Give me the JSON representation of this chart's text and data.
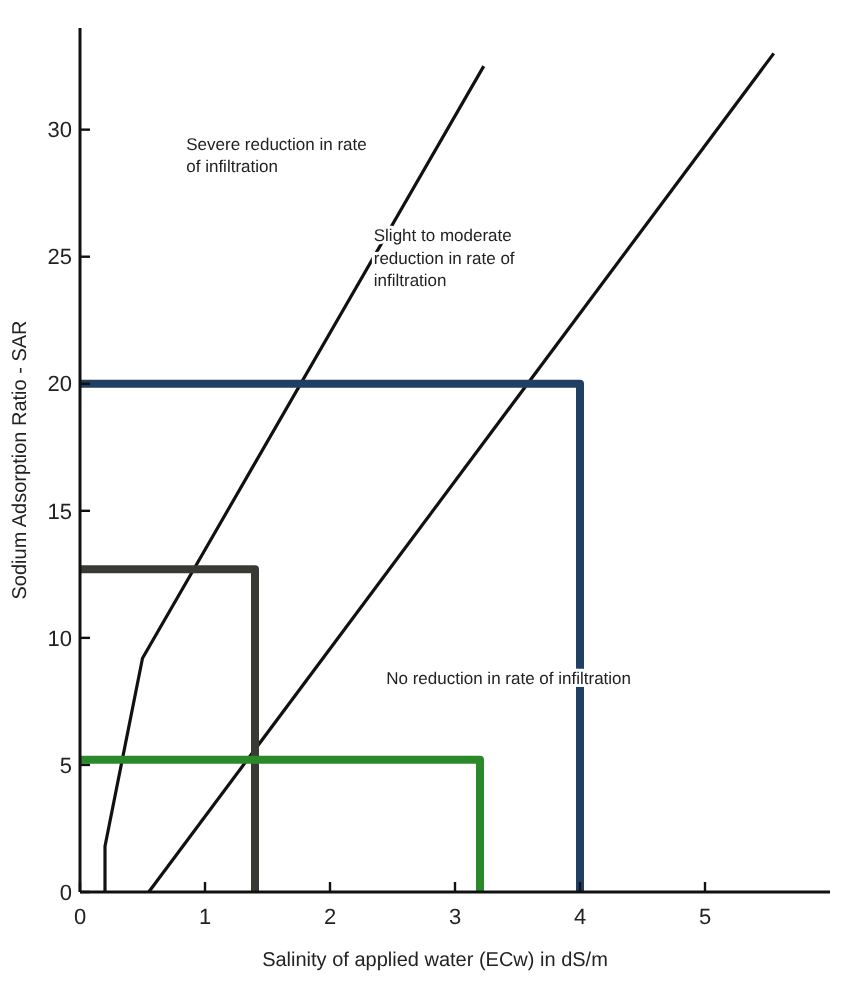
{
  "chart_data": {
    "type": "line",
    "xlabel": "Salinity of applied water (ECw) in dS/m",
    "ylabel": "Sodium Adsorption Ratio - SAR",
    "xlim": [
      0,
      6
    ],
    "ylim": [
      0,
      34
    ],
    "xticks": [
      0,
      1,
      2,
      3,
      4,
      5
    ],
    "yticks": [
      0,
      5,
      10,
      15,
      20,
      25,
      30
    ],
    "grid": false,
    "marker": "none",
    "line_style": "solid",
    "series": [
      {
        "color": "#111111",
        "x": [
          0.2,
          0.2,
          0.5,
          3.23
        ],
        "values": [
          0,
          1.8,
          9.2,
          32.5
        ]
      },
      {
        "color": "#111111",
        "x": [
          0.55,
          5.55
        ],
        "values": [
          0,
          33
        ]
      },
      {
        "color": "#1f3f63",
        "x": [
          0,
          4,
          4
        ],
        "values": [
          20,
          20,
          0
        ]
      },
      {
        "color": "#3a3a35",
        "x": [
          0,
          1.4,
          1.4
        ],
        "values": [
          12.7,
          12.7,
          0
        ]
      },
      {
        "color": "#2a8a2a",
        "x": [
          0,
          3.2,
          3.2
        ],
        "values": [
          5.2,
          5.2,
          0
        ]
      }
    ],
    "annotations": [
      "Severe reduction in rate of infiltration",
      "Slight to moderate reduction in rate of infiltration",
      "No reduction in rate of infiltration"
    ]
  }
}
